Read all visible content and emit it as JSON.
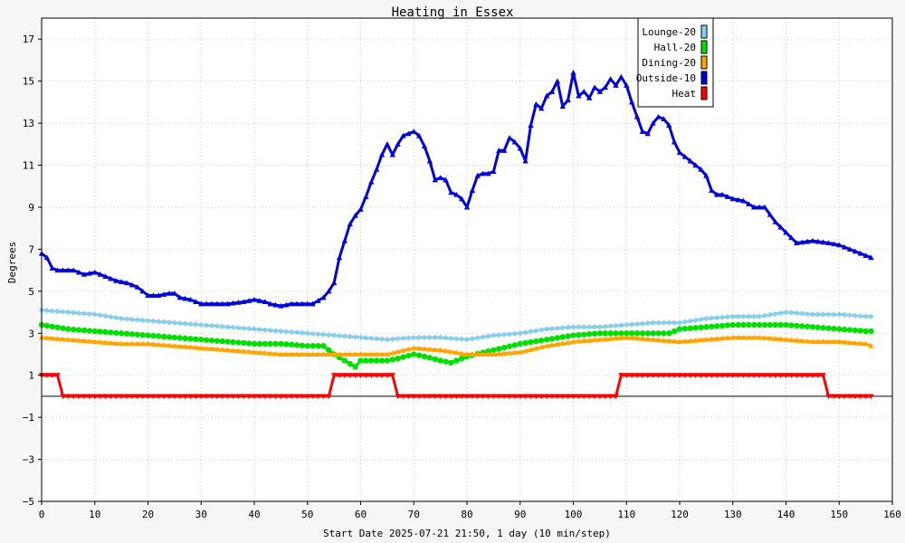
{
  "chart_data": {
    "type": "line",
    "title": "Heating in Essex",
    "xlabel": "Start Date 2025-07-21 21:50, 1 day (10 min/step)",
    "ylabel": "Degrees",
    "xlim": [
      0,
      160
    ],
    "ylim": [
      -5,
      18
    ],
    "xticks": [
      0,
      10,
      20,
      30,
      40,
      50,
      60,
      70,
      80,
      90,
      100,
      110,
      120,
      130,
      140,
      150,
      160
    ],
    "yticks": [
      -5,
      -3,
      -1,
      1,
      3,
      5,
      7,
      9,
      11,
      13,
      15,
      17
    ],
    "grid": true,
    "legend_position": "top-right",
    "series": [
      {
        "name": "Lounge-20",
        "color": "#87ceeb",
        "marker": "diamond",
        "x": [
          0,
          5,
          10,
          15,
          20,
          25,
          30,
          35,
          40,
          45,
          50,
          55,
          60,
          65,
          70,
          75,
          80,
          85,
          90,
          95,
          100,
          105,
          110,
          115,
          120,
          125,
          130,
          135,
          140,
          145,
          150,
          155,
          156
        ],
        "values": [
          4.1,
          4.0,
          3.9,
          3.7,
          3.6,
          3.5,
          3.4,
          3.3,
          3.2,
          3.1,
          3.0,
          2.9,
          2.8,
          2.7,
          2.8,
          2.8,
          2.7,
          2.9,
          3.0,
          3.2,
          3.3,
          3.3,
          3.4,
          3.5,
          3.5,
          3.7,
          3.8,
          3.8,
          4.0,
          3.9,
          3.9,
          3.8,
          3.8
        ]
      },
      {
        "name": "Hall-20",
        "color": "#00e000",
        "marker": "circle",
        "x": [
          0,
          5,
          10,
          15,
          20,
          25,
          30,
          35,
          40,
          45,
          50,
          53,
          55,
          57,
          59,
          60,
          62,
          65,
          67,
          70,
          72,
          75,
          77,
          80,
          85,
          90,
          95,
          100,
          105,
          110,
          115,
          118,
          120,
          125,
          130,
          135,
          140,
          145,
          150,
          155,
          156
        ],
        "values": [
          3.4,
          3.2,
          3.1,
          3.0,
          2.9,
          2.8,
          2.7,
          2.6,
          2.5,
          2.5,
          2.4,
          2.4,
          2.0,
          1.7,
          1.4,
          1.7,
          1.7,
          1.7,
          1.8,
          2.0,
          1.9,
          1.7,
          1.6,
          1.9,
          2.2,
          2.5,
          2.7,
          2.9,
          3.0,
          3.0,
          3.0,
          3.0,
          3.2,
          3.3,
          3.4,
          3.4,
          3.4,
          3.3,
          3.2,
          3.1,
          3.1
        ]
      },
      {
        "name": "Dining-20",
        "color": "#ffa500",
        "marker": "triangle",
        "x": [
          0,
          5,
          10,
          15,
          20,
          25,
          30,
          35,
          40,
          45,
          50,
          55,
          60,
          65,
          70,
          75,
          80,
          85,
          90,
          95,
          100,
          105,
          110,
          115,
          120,
          125,
          130,
          135,
          140,
          145,
          150,
          155,
          156
        ],
        "values": [
          2.8,
          2.7,
          2.6,
          2.5,
          2.5,
          2.4,
          2.3,
          2.2,
          2.1,
          2.0,
          2.0,
          2.0,
          2.0,
          2.0,
          2.3,
          2.2,
          2.0,
          2.0,
          2.1,
          2.4,
          2.6,
          2.7,
          2.8,
          2.7,
          2.6,
          2.7,
          2.8,
          2.8,
          2.7,
          2.6,
          2.6,
          2.5,
          2.4
        ]
      },
      {
        "name": "Outside-10",
        "color": "#0000dd",
        "marker": "triangle",
        "x": [
          0,
          1,
          2,
          3,
          5,
          6,
          8,
          10,
          12,
          14,
          16,
          18,
          20,
          22,
          24,
          25,
          26,
          28,
          30,
          33,
          35,
          38,
          40,
          42,
          43,
          45,
          47,
          49,
          51,
          53,
          54,
          55,
          56,
          57,
          58,
          59,
          60,
          61,
          62,
          63,
          64,
          65,
          66,
          67,
          68,
          69,
          70,
          71,
          72,
          73,
          74,
          75,
          76,
          77,
          78,
          79,
          80,
          81,
          82,
          83,
          84,
          85,
          86,
          87,
          88,
          89,
          90,
          91,
          92,
          93,
          94,
          95,
          96,
          97,
          98,
          99,
          100,
          101,
          102,
          103,
          104,
          105,
          106,
          107,
          108,
          109,
          110,
          111,
          112,
          113,
          114,
          115,
          116,
          117,
          118,
          119,
          120,
          121,
          122,
          123,
          124,
          125,
          126,
          127,
          128,
          130,
          132,
          134,
          136,
          138,
          140,
          142,
          145,
          148,
          150,
          152,
          154,
          156
        ],
        "values": [
          6.8,
          6.6,
          6.1,
          6.0,
          6.0,
          6.0,
          5.8,
          5.9,
          5.7,
          5.5,
          5.4,
          5.2,
          4.8,
          4.8,
          4.9,
          4.9,
          4.7,
          4.6,
          4.4,
          4.4,
          4.4,
          4.5,
          4.6,
          4.5,
          4.4,
          4.3,
          4.4,
          4.4,
          4.4,
          4.7,
          5.0,
          5.4,
          6.6,
          7.4,
          8.2,
          8.6,
          8.9,
          9.5,
          10.2,
          10.8,
          11.5,
          12.0,
          11.5,
          12.0,
          12.4,
          12.5,
          12.6,
          12.4,
          11.9,
          11.2,
          10.3,
          10.4,
          10.3,
          9.7,
          9.6,
          9.4,
          9.0,
          9.8,
          10.5,
          10.6,
          10.6,
          10.7,
          11.7,
          11.7,
          12.3,
          12.1,
          11.8,
          11.2,
          12.9,
          13.9,
          13.7,
          14.3,
          14.5,
          15.0,
          13.8,
          14.1,
          15.4,
          14.3,
          14.5,
          14.2,
          14.7,
          14.5,
          14.7,
          15.1,
          14.8,
          15.2,
          14.8,
          14.0,
          13.3,
          12.6,
          12.5,
          13.0,
          13.3,
          13.2,
          12.9,
          12.1,
          11.6,
          11.4,
          11.2,
          11.0,
          10.8,
          10.5,
          9.8,
          9.6,
          9.6,
          9.4,
          9.3,
          9.0,
          9.0,
          8.3,
          7.8,
          7.3,
          7.4,
          7.3,
          7.2,
          7.0,
          6.8,
          6.6
        ]
      },
      {
        "name": "Heat",
        "color": "#ff0000",
        "marker": "triangle-down",
        "step": true,
        "x": [
          0,
          3,
          4,
          54,
          55,
          66,
          67,
          108,
          109,
          147,
          148,
          156
        ],
        "values": [
          1,
          1,
          0,
          0,
          1,
          1,
          0,
          0,
          1,
          1,
          0,
          0
        ]
      }
    ]
  }
}
